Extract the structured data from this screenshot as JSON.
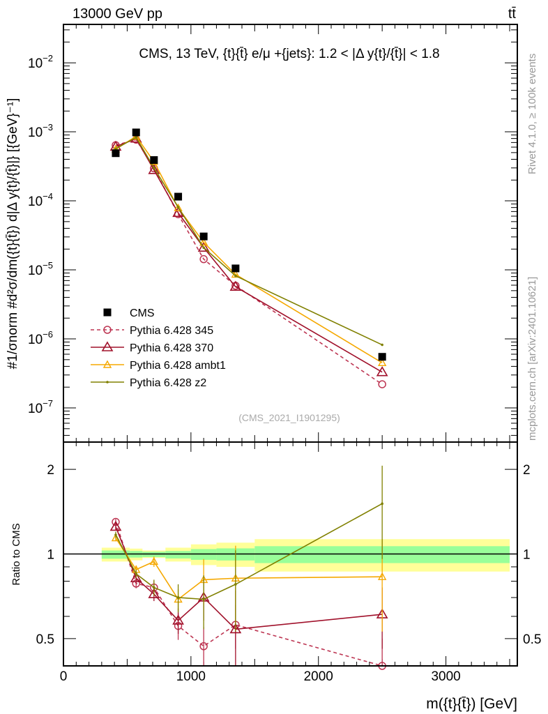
{
  "header": {
    "left": "13000 GeV pp",
    "right": "tt̄"
  },
  "side_texts": {
    "rivet": "Rivet 4.1.0, ≥ 100k events",
    "mcplots": "mcplots.cern.ch [arXiv:2401.10621]"
  },
  "chart_data": [
    {
      "type": "line",
      "scale": "log",
      "title": "CMS, 13 TeV, {t}{t̄} e/μ +{jets}: 1.2 < |Δ y{t}/{t̄}| < 1.8",
      "ylabel": "#1/σnorm #d²σ/dm({t}{t̄}) d|Δ y{t}/{t̄}|} [{GeV}⁻¹]",
      "analysis_tag": "(CMS_2021_I1901295)",
      "xlim": [
        0,
        3560
      ],
      "ylim": [
        3.2e-08,
        0.036
      ],
      "yticks": [
        {
          "v": 0.01,
          "exp": "−2"
        },
        {
          "v": 0.001,
          "exp": "−3"
        },
        {
          "v": 0.0001,
          "exp": "−4"
        },
        {
          "v": 1e-05,
          "exp": "−5"
        },
        {
          "v": 1e-06,
          "exp": "−6"
        },
        {
          "v": 1e-07,
          "exp": "−7"
        }
      ],
      "legend_position": "bottom-left",
      "x": [
        410,
        570,
        710,
        900,
        1100,
        1350,
        2500
      ],
      "series": [
        {
          "name": "CMS",
          "color": "#000000",
          "marker": "square",
          "values": [
            0.00049,
            0.00098,
            0.00039,
            0.000115,
            3.05e-05,
            1.05e-05,
            5.5e-07
          ]
        },
        {
          "name": "Pythia 6.428 345",
          "color": "#bd3552",
          "marker": "circle",
          "dashed": true,
          "values": [
            0.00064,
            0.00077,
            0.000296,
            6.4e-05,
            1.43e-05,
            5.9e-06,
            2.2e-07
          ]
        },
        {
          "name": "Pythia 6.428 370",
          "color": "#a0102a",
          "marker": "triangle",
          "values": [
            0.00061,
            0.0008,
            0.00028,
            6.7e-05,
            2.1e-05,
            5.7e-06,
            3.3e-07
          ]
        },
        {
          "name": "Pythia 6.428 ambt1",
          "color": "#f5a800",
          "marker": "triangle-small",
          "values": [
            0.00056,
            0.00086,
            0.00037,
            7.9e-05,
            2.5e-05,
            8.6e-06,
            4.5e-07
          ]
        },
        {
          "name": "Pythia 6.428 z2",
          "color": "#808000",
          "marker": "dot",
          "values": [
            0.00057,
            0.00083,
            0.0003,
            8.1e-05,
            2.1e-05,
            8.2e-06,
            8.2e-07
          ]
        }
      ]
    },
    {
      "type": "line",
      "scale": "log",
      "ylabel": "Ratio to CMS",
      "xlabel": "m({t}{t̄}) [GeV]",
      "xlim": [
        0,
        3560
      ],
      "ylim": [
        0.4,
        2.5
      ],
      "xticks": [
        {
          "v": 0,
          "label": "0"
        },
        {
          "v": 1000,
          "label": "1000"
        },
        {
          "v": 2000,
          "label": "2000"
        },
        {
          "v": 3000,
          "label": "3000"
        }
      ],
      "yticks": [
        {
          "v": 2,
          "label": "2"
        },
        {
          "v": 1,
          "label": "1"
        },
        {
          "v": 0.5,
          "label": "0.5"
        }
      ],
      "bins": [
        300,
        520,
        620,
        800,
        1000,
        1200,
        1500,
        3500
      ],
      "band_stat": [
        [
          0.962,
          1.029
        ],
        [
          0.971,
          1.025
        ],
        [
          0.975,
          1.019
        ],
        [
          0.964,
          1.025
        ],
        [
          0.953,
          1.041
        ],
        [
          0.948,
          1.047
        ],
        [
          0.928,
          1.066
        ]
      ],
      "band_total": [
        [
          0.94,
          1.053
        ],
        [
          0.949,
          1.045
        ],
        [
          0.968,
          1.029
        ],
        [
          0.94,
          1.053
        ],
        [
          0.913,
          1.082
        ],
        [
          0.9,
          1.097
        ],
        [
          0.866,
          1.129
        ]
      ],
      "x": [
        410,
        570,
        710,
        900,
        1100,
        1350,
        2500
      ],
      "series": [
        {
          "name": "Pythia 6.428 345",
          "values": [
            1.3,
            0.785,
            0.76,
            0.555,
            0.47,
            0.56,
            0.4
          ],
          "err": [
            0.03,
            0.03,
            0.04,
            0.06,
            0.08,
            0.1,
            0.1
          ]
        },
        {
          "name": "Pythia 6.428 370",
          "values": [
            1.25,
            0.82,
            0.72,
            0.58,
            0.7,
            0.54,
            0.61
          ],
          "err": [
            0.03,
            0.03,
            0.04,
            0.06,
            0.12,
            0.2,
            0.15
          ]
        },
        {
          "name": "Pythia 6.428 ambt1",
          "values": [
            1.14,
            0.88,
            0.94,
            0.69,
            0.81,
            0.82,
            0.83
          ],
          "err": [
            0.03,
            0.03,
            0.04,
            0.06,
            0.15,
            0.25,
            0.3
          ]
        },
        {
          "name": "Pythia 6.428 z2",
          "values": [
            1.17,
            0.85,
            0.76,
            0.7,
            0.69,
            0.78,
            1.51
          ],
          "err": [
            0.03,
            0.03,
            0.05,
            0.08,
            0.15,
            0.25,
            0.55
          ]
        }
      ]
    }
  ]
}
